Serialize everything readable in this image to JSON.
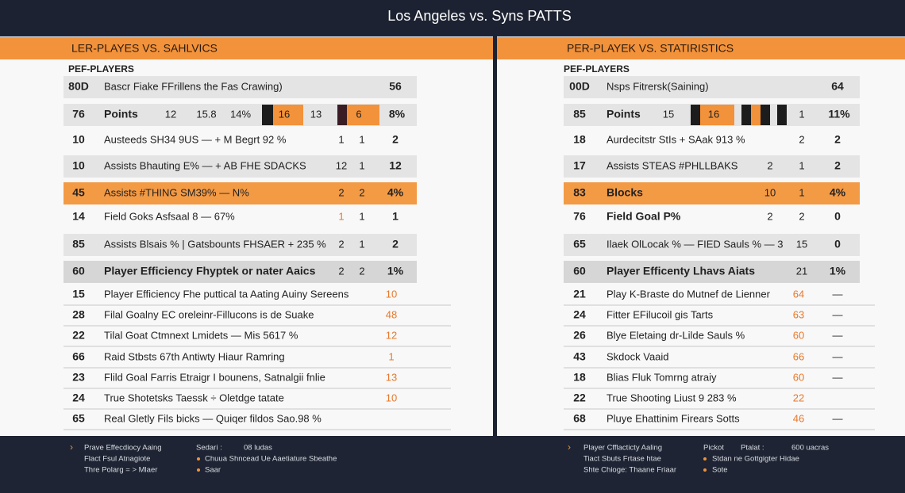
{
  "header": {
    "title": "Los Angeles vs. Syns PATTS"
  },
  "panels": [
    {
      "heading": "LER-PLAYES VS. SAHLVICS",
      "subheading": "PEF-PLAYERS",
      "rows": [
        {
          "rank": "80D",
          "label": "Bascr Fiake FFrillens the Fas Crawing)",
          "cells": [
            "56"
          ]
        },
        {
          "rank": "76",
          "label": "Points",
          "cells": [
            "12",
            "15.8",
            "14%",
            "16",
            "13",
            "6",
            "8%"
          ]
        },
        {
          "rank": "10",
          "label": "Austeeds SH34 9US — + M Begrt 92 %",
          "cells": [
            "1",
            "1",
            "2"
          ]
        },
        {
          "rank": "10",
          "label": "Assists Bhauting E% — + AB FHE SDACKS",
          "cells": [
            "12",
            "1",
            "12"
          ]
        },
        {
          "rank": "45",
          "label": "Assists #THING SM39% — N%",
          "cells": [
            "2",
            "2",
            "4%"
          ]
        },
        {
          "rank": "14",
          "label": "Field Goks Asfsaal 8 — 67%",
          "cells": [
            "1",
            "1",
            "1"
          ]
        },
        {
          "rank": "85",
          "label": "Assists Blsais % | Gatsbounts FHSAER + 235 %",
          "cells": [
            "2",
            "1",
            "2"
          ]
        },
        {
          "rank": "60",
          "label": "Player Efficiency Fhyptek or nater Aaics",
          "cells": [
            "2",
            "2",
            "1%"
          ]
        },
        {
          "rank": "15",
          "label": "Player Efficiency Fhe puttical ta Aating Auiny Sereens",
          "cells": [
            "10"
          ]
        },
        {
          "rank": "28",
          "label": "Filal Goalny EC oreleinr-Fillucons is de Suake",
          "cells": [
            "48"
          ]
        },
        {
          "rank": "22",
          "label": "Tilal Goat Ctmnext Lmidets — Mis 5617 %",
          "cells": [
            "12"
          ]
        },
        {
          "rank": "66",
          "label": "Raid Stbsts 67th Antiwty Hiaur Ramring",
          "cells": [
            "1"
          ]
        },
        {
          "rank": "23",
          "label": "Flild Goal Farris Etraigr I bounens, Satnalgii fnlie",
          "cells": [
            "13"
          ]
        },
        {
          "rank": "24",
          "label": "True Shotetsks Taessk ÷ Oletdge tatate",
          "cells": [
            "10"
          ]
        },
        {
          "rank": "65",
          "label": "Real Gletly Fils bicks — Quiqer fildos Sao.98 %",
          "cells": []
        }
      ],
      "footer": [
        "Prave Effecdiocy Aaing",
        "Flact Fsul Atnagiote",
        "Thre Polarg = > Mlaer",
        "Sedari :",
        "08 ludas",
        "Chuua Shncead Ue Aaetiature Sbeathe",
        "Saar"
      ]
    },
    {
      "heading": "PER-PLAYEK VS. STATIRISTICS",
      "subheading": "PEF-PLAYERS",
      "rows": [
        {
          "rank": "00D",
          "label": "Nsps Fitrersk(Saining)",
          "cells": [
            "64"
          ]
        },
        {
          "rank": "85",
          "label": "Points",
          "cells": [
            "15",
            "16",
            "1",
            "11%"
          ]
        },
        {
          "rank": "18",
          "label": "Aurdecitstr StIs + SAak 913 %",
          "cells": [
            "2",
            "2"
          ]
        },
        {
          "rank": "17",
          "label": "Assists STEAS #PHLLBAKS",
          "cells": [
            "2",
            "1",
            "2"
          ]
        },
        {
          "rank": "83",
          "label": "Blocks",
          "cells": [
            "10",
            "1",
            "4%"
          ]
        },
        {
          "rank": "76",
          "label": "Field Goal P%",
          "cells": [
            "2",
            "2",
            "0"
          ]
        },
        {
          "rank": "65",
          "label": "Ilaek OlLocak % — FIED Sauls % — 3",
          "cells": [
            "15",
            "0"
          ]
        },
        {
          "rank": "60",
          "label": "Player Efficenty Lhavs Aiats",
          "cells": [
            "21",
            "1%"
          ]
        },
        {
          "rank": "21",
          "label": "Play K-Braste do Mutnef de Lienner",
          "cells": [
            "64",
            "—"
          ]
        },
        {
          "rank": "24",
          "label": "Fitter EFilucoil gis Tarts",
          "cells": [
            "63",
            "—"
          ]
        },
        {
          "rank": "26",
          "label": "Blye Eletaing dr-Lilde Sauls %",
          "cells": [
            "60",
            "—"
          ]
        },
        {
          "rank": "43",
          "label": "Skdock Vaaid",
          "cells": [
            "66",
            "—"
          ]
        },
        {
          "rank": "18",
          "label": "Blias Fluk Tomrng atraiy",
          "cells": [
            "60",
            "—"
          ]
        },
        {
          "rank": "22",
          "label": "True Shooting Liust 9 283 %",
          "cells": [
            "22"
          ]
        },
        {
          "rank": "68",
          "label": "Pluye Ehattinim Firears Sotts",
          "cells": [
            "46",
            "—"
          ]
        }
      ],
      "footer": [
        "Player Cfflacticty Aaling",
        "Tiact Sbuts Frtase htae",
        "Shte Chioge: Thaane Friaar",
        "Pickot",
        "Ptalat :",
        "600 uacras",
        "Stdan ne Gottgigter Hidae",
        "Sote"
      ]
    }
  ]
}
